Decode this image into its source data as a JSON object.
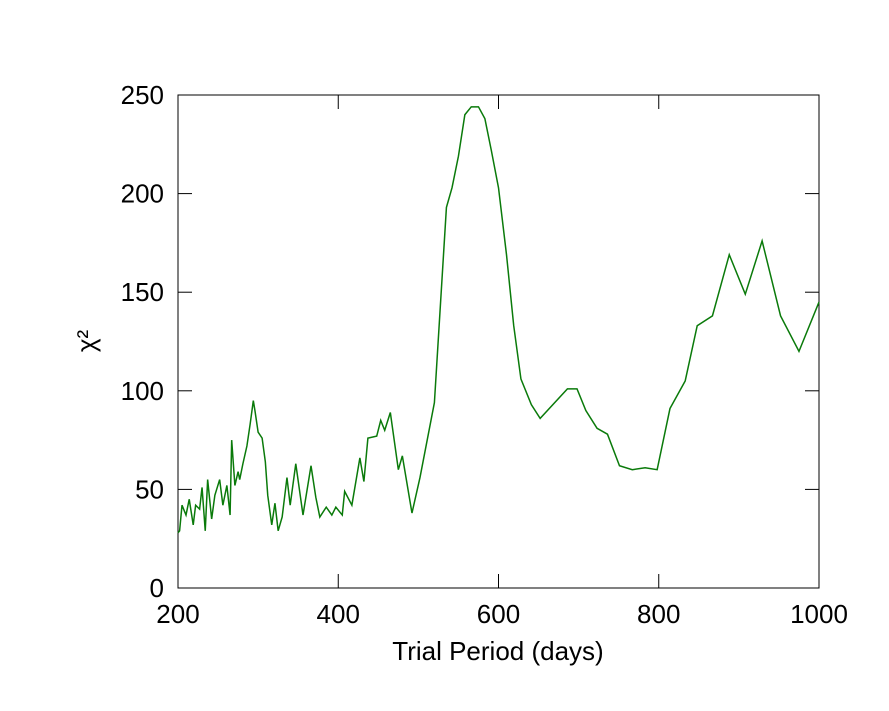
{
  "chart_data": {
    "type": "line",
    "x_label": "Trial Period (days)",
    "y_label": "χ²",
    "color": "#0a7a0a",
    "x": [
      200,
      202,
      205,
      210,
      214,
      219,
      222,
      227,
      230,
      234,
      237,
      242,
      246,
      252,
      256,
      261,
      265,
      267,
      271,
      275,
      277,
      281,
      286,
      290,
      294,
      296,
      300,
      305,
      309,
      312,
      317,
      321,
      325,
      330,
      336,
      340,
      347,
      356,
      366,
      372,
      377,
      385,
      392,
      397,
      405,
      408,
      417,
      427,
      432,
      437,
      448,
      453,
      458,
      465,
      475,
      480,
      492,
      502,
      520,
      535,
      542,
      550,
      558,
      566,
      575,
      583,
      591,
      600,
      610,
      619,
      628,
      641,
      652,
      686,
      698,
      709,
      723,
      736,
      751,
      767,
      783,
      798,
      814,
      833,
      848,
      867,
      888,
      908,
      929,
      952,
      975,
      1000
    ],
    "values": [
      28,
      29,
      42,
      37,
      45,
      32,
      42,
      40,
      51,
      29,
      55,
      35,
      47,
      55,
      42,
      52,
      37,
      75,
      52,
      59,
      55,
      63,
      72,
      83,
      95,
      90,
      79,
      76,
      64,
      47,
      32,
      43,
      29,
      36,
      56,
      42,
      63,
      37,
      62,
      46,
      36,
      41,
      37,
      41,
      37,
      49,
      42,
      66,
      54,
      76,
      77,
      85,
      80,
      89,
      60,
      67,
      38,
      56,
      94,
      193,
      203,
      219,
      240,
      244,
      244,
      238,
      222,
      203,
      169,
      133,
      106,
      93,
      86,
      101,
      101,
      90,
      81,
      78,
      62,
      60,
      61,
      60,
      91,
      105,
      133,
      138,
      169,
      149,
      176,
      138,
      120,
      145
    ],
    "xlim": [
      200,
      1000
    ],
    "xticks": [
      200,
      400,
      600,
      800,
      1000
    ],
    "ylim": [
      0,
      250
    ],
    "yticks": [
      0,
      50,
      100,
      150,
      200,
      250
    ]
  }
}
